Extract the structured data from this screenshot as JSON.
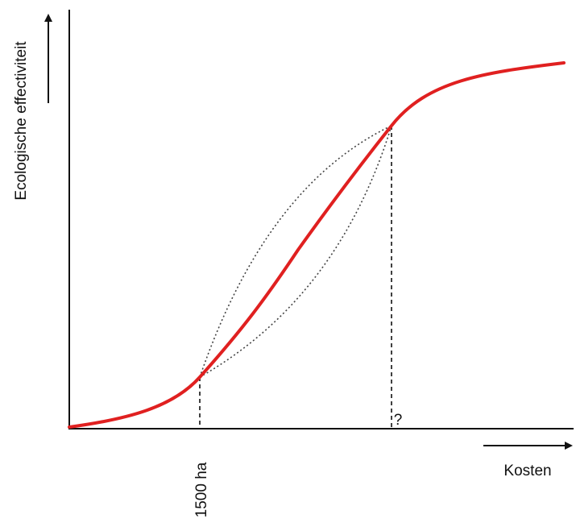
{
  "diagram": {
    "y_axis_label": "Ecologische effectiviteit",
    "x_axis_label": "Kosten",
    "marker_left_label": "1500 ha",
    "marker_right_label": "?"
  },
  "colors": {
    "curve": "#e02020",
    "axes": "#111111",
    "dotted": "#444444",
    "dashed": "#111111"
  }
}
